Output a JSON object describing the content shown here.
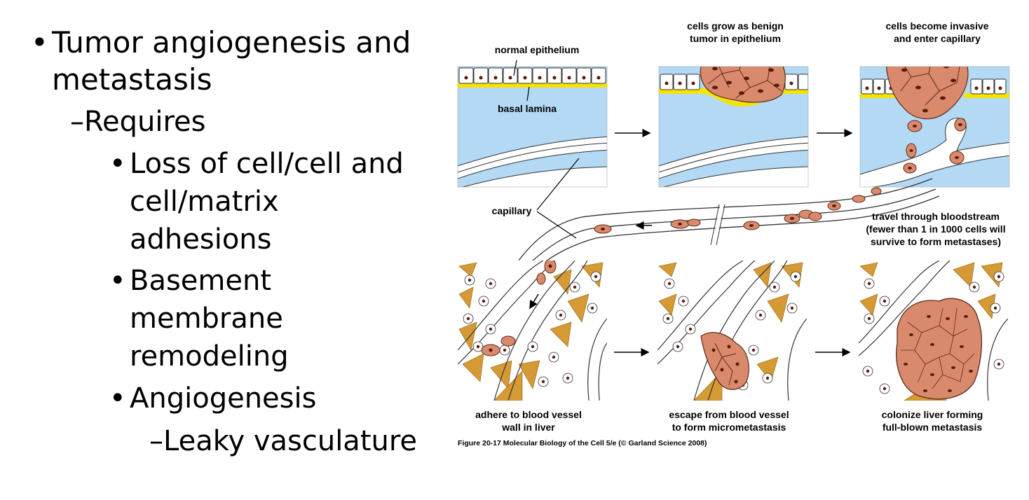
{
  "bullets": {
    "b1_line1": "Tumor angiogenesis and",
    "b1_line2": "metastasis",
    "b2": "–Requires",
    "b3_line1": "Loss of cell/cell and",
    "b3_line2": "cell/matrix",
    "b3_line3": "adhesions",
    "b4_line1": "Basement",
    "b4_line2": "membrane",
    "b4_line3": "remodeling",
    "b5": "Angiogenesis",
    "b6": "–Leaky vasculature"
  },
  "figure": {
    "label_normal_epithelium": "normal epithelium",
    "label_basal_lamina": "basal lamina",
    "label_capillary": "capillary",
    "caption_benign_1": "cells grow as benign",
    "caption_benign_2": "tumor in epithelium",
    "caption_invasive_1": "cells become invasive",
    "caption_invasive_2": "and enter capillary",
    "caption_travel_1": "travel through bloodstream",
    "caption_travel_2": "(fewer than 1 in 1000 cells will",
    "caption_travel_3": "survive to form metastases)",
    "caption_adhere_1": "adhere to blood vessel",
    "caption_adhere_2": "wall in liver",
    "caption_escape_1": "escape from blood vessel",
    "caption_escape_2": "to form micrometastasis",
    "caption_colonize_1": "colonize liver forming",
    "caption_colonize_2": "full-blown metastasis",
    "credit": "Figure 20-17  Molecular Biology of the Cell 5/e (© Garland Science 2008)"
  },
  "colors": {
    "lumen_blue": "#b3d9f5",
    "lamina_yellow": "#f5e400",
    "tumor_cell": "#d98a6c",
    "hepatocyte_gold": "#d69a35"
  }
}
